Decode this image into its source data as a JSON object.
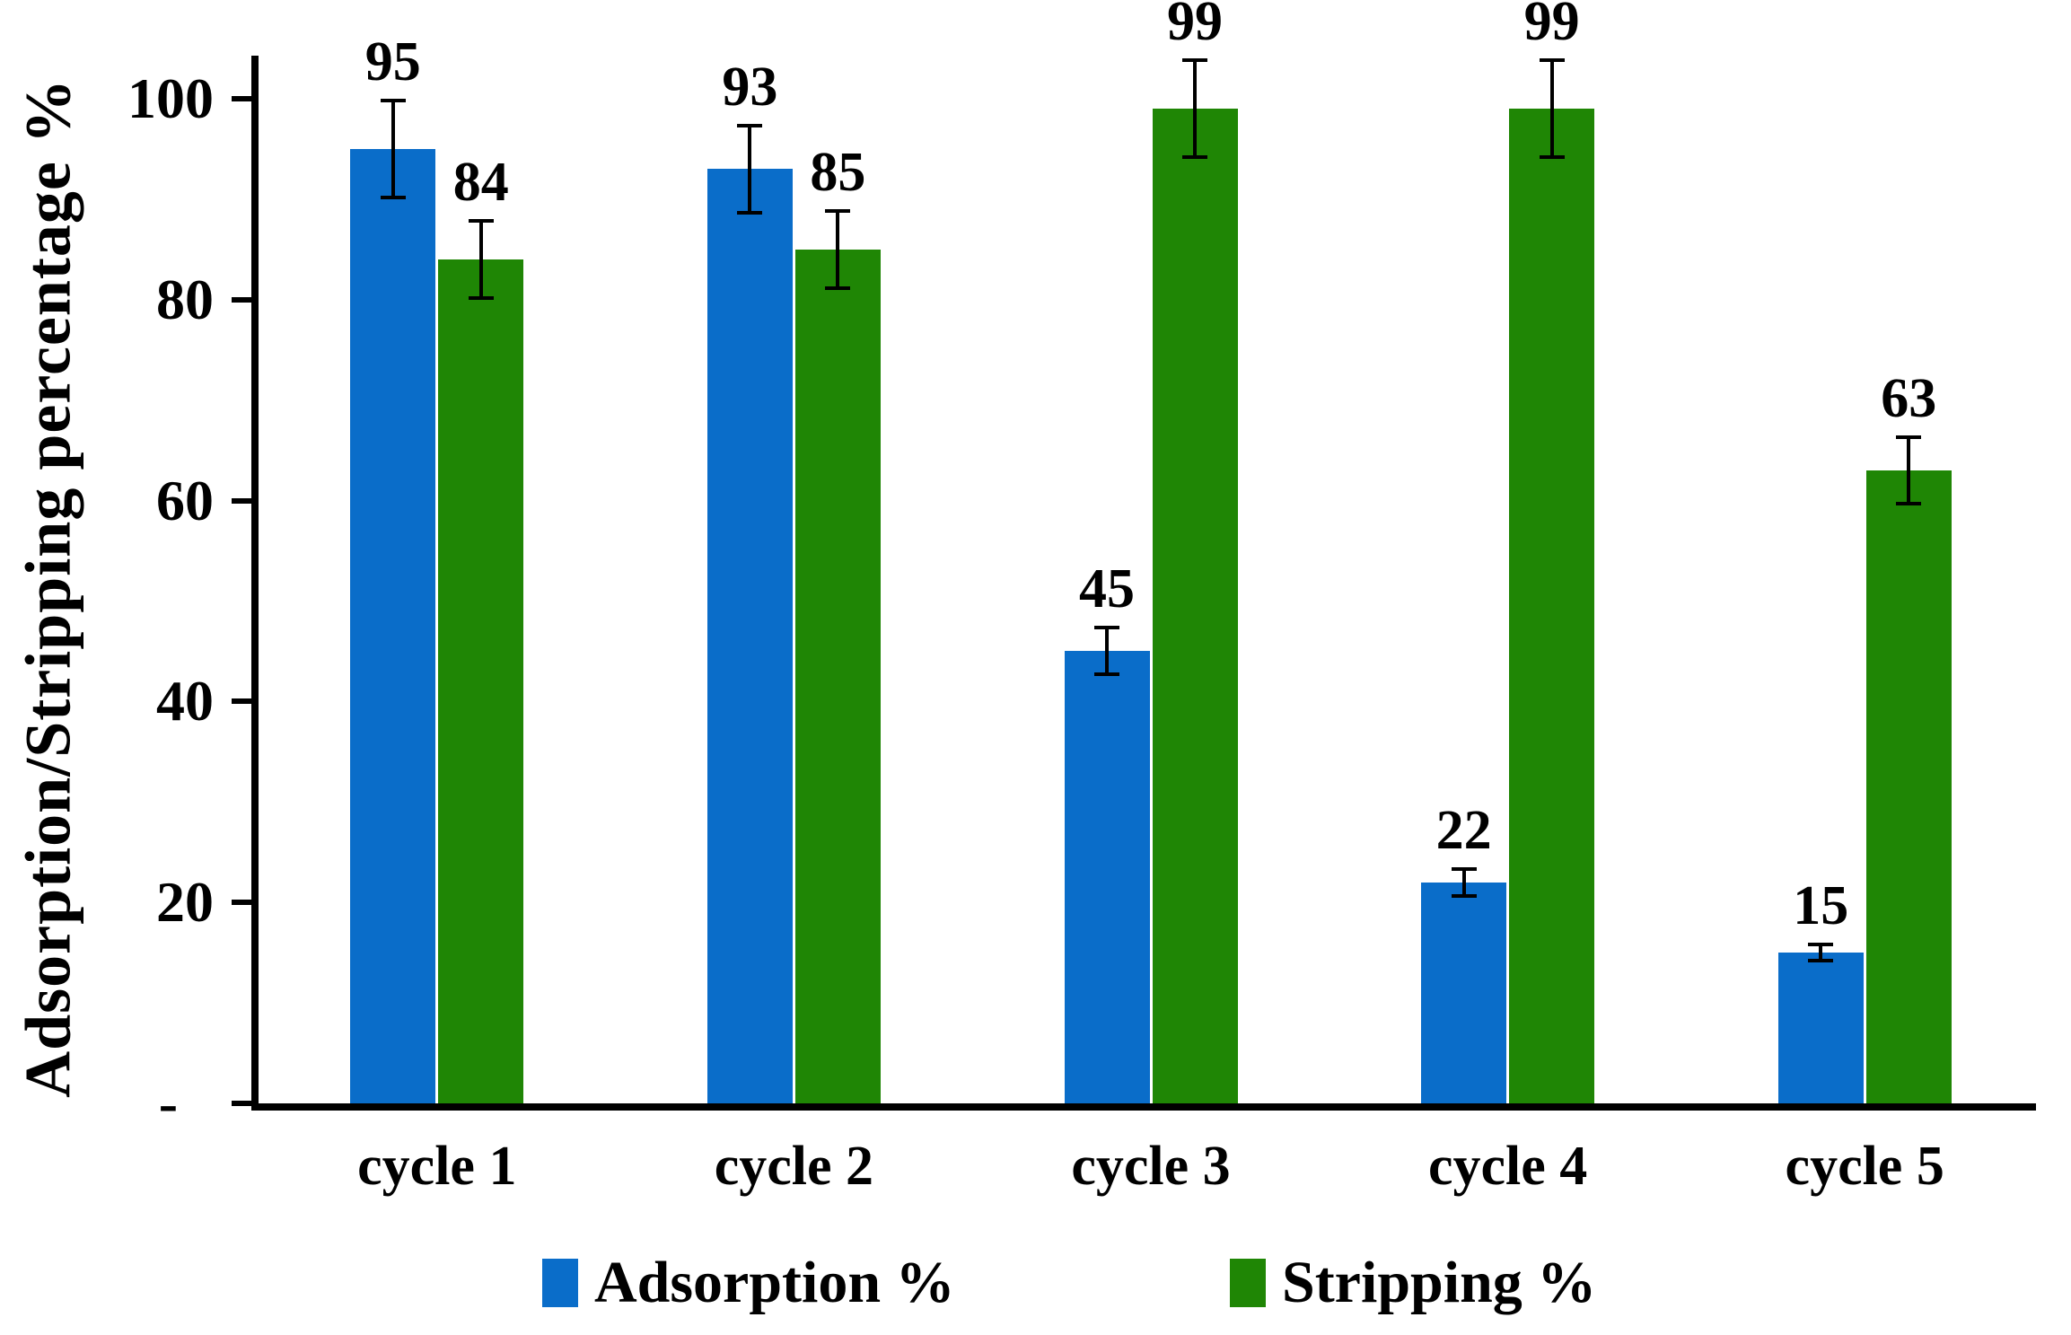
{
  "figure": {
    "background": "#ffffff",
    "text_color": "#000000"
  },
  "chart_data": {
    "type": "bar",
    "title": "",
    "xlabel": "",
    "ylabel": "Adsorption/Stripping percentage %",
    "categories": [
      "cycle 1",
      "cycle 2",
      "cycle 3",
      "cycle 4",
      "cycle 5"
    ],
    "series": [
      {
        "name": "Adsorption %",
        "color": "#0a6dc9",
        "values": [
          95,
          93,
          45,
          22,
          15
        ],
        "errors": [
          5,
          4.5,
          2.5,
          1.5,
          1
        ]
      },
      {
        "name": "Stripping %",
        "color": "#1f8605",
        "values": [
          84,
          85,
          99,
          99,
          63
        ],
        "errors": [
          4,
          4,
          5,
          5,
          3.5
        ]
      }
    ],
    "value_labels_visible": true,
    "y_ticks": [
      {
        "value": 100,
        "label": "100"
      },
      {
        "value": 80,
        "label": "80"
      },
      {
        "value": 60,
        "label": "60"
      },
      {
        "value": 40,
        "label": "40"
      },
      {
        "value": 20,
        "label": "20"
      },
      {
        "value": 0,
        "label": "-"
      }
    ],
    "ylim": [
      0,
      105
    ],
    "grid": false,
    "legend_position": "bottom",
    "axis_color": "#000000",
    "error_bar_color": "#000000"
  }
}
